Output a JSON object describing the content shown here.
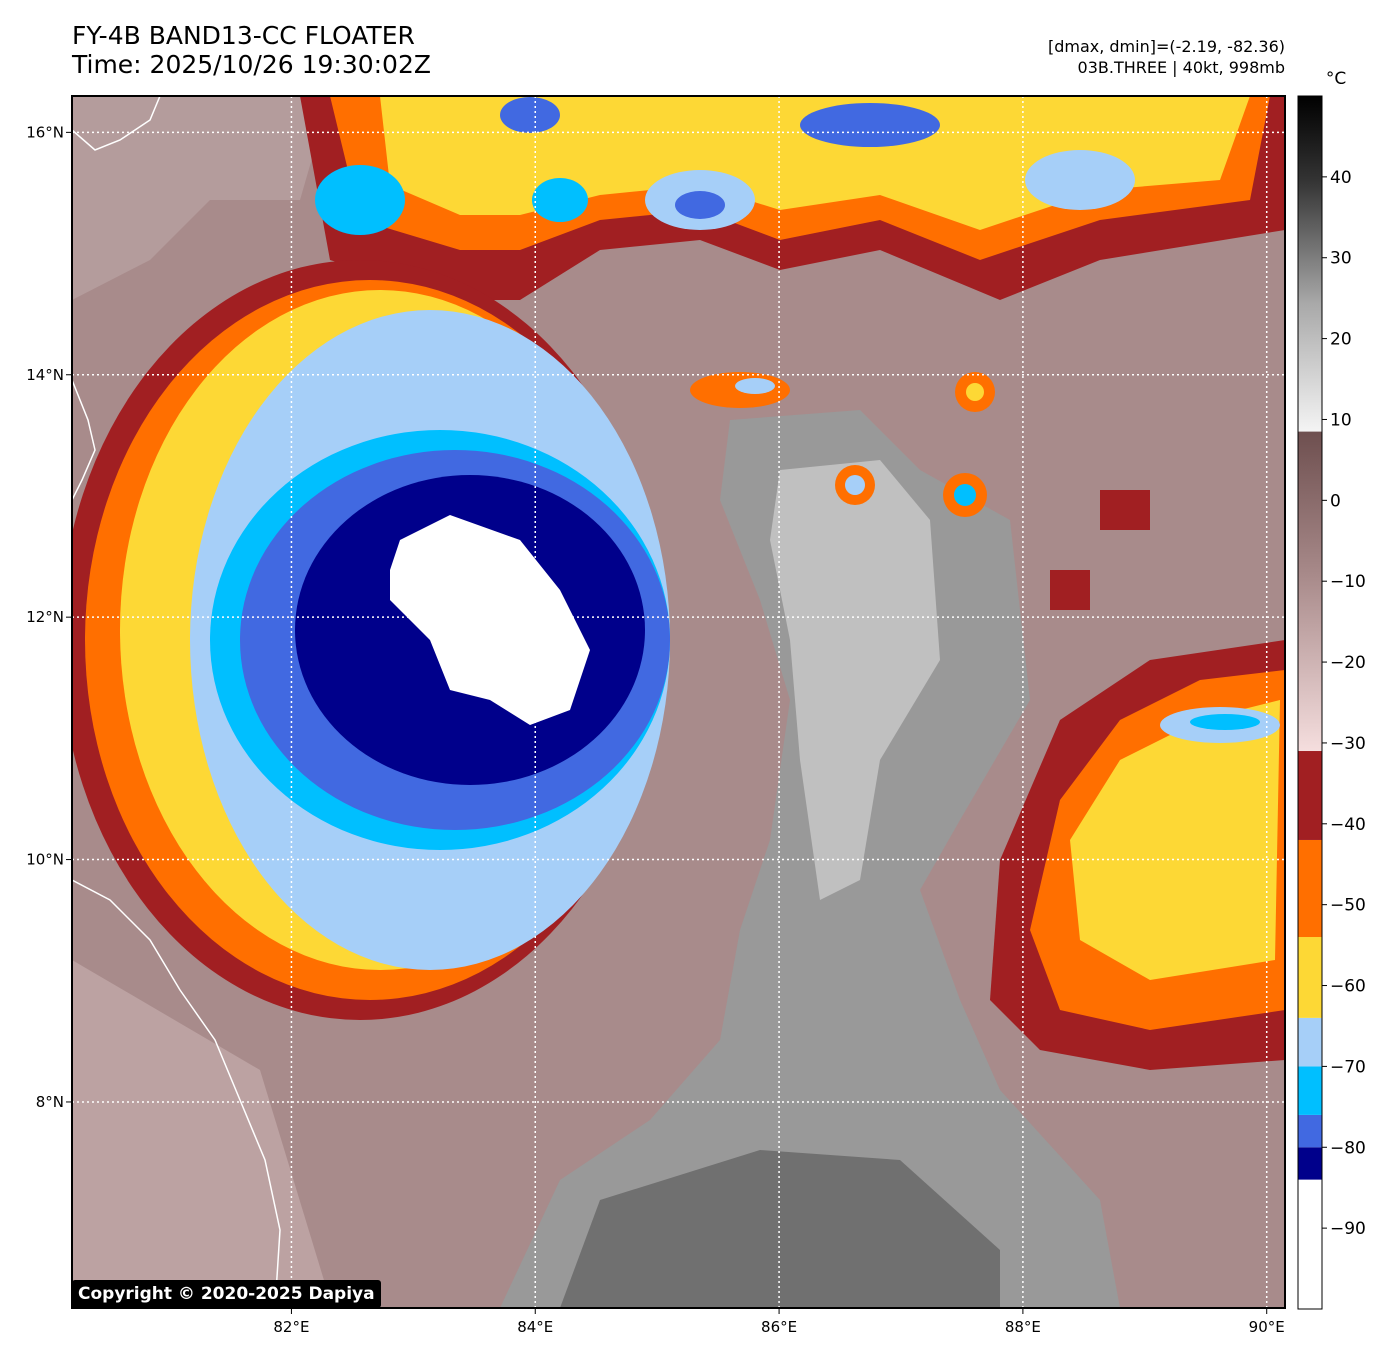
{
  "header": {
    "title": "FY-4B BAND13-CC FLOATER",
    "time": "Time: 2025/10/26 19:30:02Z",
    "dminmax": "[dmax, dmin]=(-2.19, -82.36)",
    "storm": "03B.THREE | 40kt, 998mb"
  },
  "map": {
    "lon_ticks": [
      "82°E",
      "84°E",
      "86°E",
      "88°E",
      "90°E"
    ],
    "lat_ticks": [
      "16°N",
      "14°N",
      "12°N",
      "10°N",
      "8°N"
    ],
    "lon_values": [
      82,
      84,
      86,
      88,
      90
    ],
    "lat_values": [
      16,
      14,
      12,
      10,
      8
    ],
    "extent": {
      "lon_min": 80.2,
      "lon_max": 90.15,
      "lat_min": 6.3,
      "lat_max": 16.3
    },
    "copyright": "Copyright © 2020-2025 Dapiya"
  },
  "colorbar": {
    "unit": "°C",
    "ticks": [
      "40",
      "30",
      "20",
      "10",
      "0",
      "−10",
      "−20",
      "−30",
      "−40",
      "−50",
      "−60",
      "−70",
      "−80",
      "−90"
    ],
    "tick_values": [
      40,
      30,
      20,
      10,
      0,
      -10,
      -20,
      -30,
      -40,
      -50,
      -60,
      -70,
      -80,
      -90
    ],
    "range": [
      -100,
      50
    ],
    "color_bands": [
      {
        "from": -100,
        "to": -84,
        "color": "#ffffff"
      },
      {
        "from": -84,
        "to": -80,
        "color": "#00008b"
      },
      {
        "from": -80,
        "to": -76,
        "color": "#4169e1"
      },
      {
        "from": -76,
        "to": -70,
        "color": "#00bfff"
      },
      {
        "from": -70,
        "to": -64,
        "color": "#a6cff8"
      },
      {
        "from": -64,
        "to": -54,
        "color": "#fdd835"
      },
      {
        "from": -54,
        "to": -42,
        "color": "#ff6f00"
      },
      {
        "from": -42,
        "to": -31,
        "color": "#a11f22"
      }
    ]
  }
}
